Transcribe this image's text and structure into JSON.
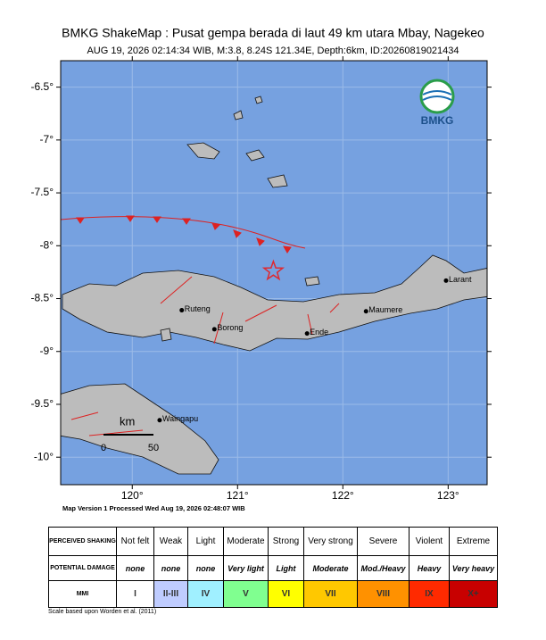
{
  "header": {
    "title": "BMKG ShakeMap : Pusat gempa berada di laut 49 km utara Mbay, Nagekeo",
    "subtitle": "AUG 19, 2026 02:14:34 WIB, M:3.8, 8.24S 121.34E, Depth:6km, ID:20260819021434"
  },
  "map": {
    "lonlim": [
      119.32,
      123.37
    ],
    "latlim": [
      -10.26,
      -6.25
    ],
    "lonticks": [
      {
        "value": 120,
        "label": "120°"
      },
      {
        "value": 121,
        "label": "121°"
      },
      {
        "value": 122,
        "label": "122°"
      },
      {
        "value": 123,
        "label": "123°"
      }
    ],
    "latticks": [
      {
        "value": -6.5,
        "label": "-6.5°"
      },
      {
        "value": -7,
        "label": "-7°"
      },
      {
        "value": -7.5,
        "label": "-7.5°"
      },
      {
        "value": -8,
        "label": "-8°"
      },
      {
        "value": -8.5,
        "label": "-8.5°"
      },
      {
        "value": -9,
        "label": "-9°"
      },
      {
        "value": -9.5,
        "label": "-9.5°"
      },
      {
        "value": -10,
        "label": "-10°"
      }
    ],
    "grid": true,
    "sea_color": "#76a1e0",
    "epicenter": {
      "lon": 121.34,
      "lat": -8.24,
      "color": "#e0282e"
    },
    "places": [
      {
        "name": "Ruteng",
        "lon": 120.47,
        "lat": -8.61
      },
      {
        "name": "Borong",
        "lon": 120.78,
        "lat": -8.79
      },
      {
        "name": "Ende",
        "lon": 121.66,
        "lat": -8.83
      },
      {
        "name": "Maumere",
        "lon": 122.22,
        "lat": -8.62
      },
      {
        "name": "Larant",
        "lon": 122.98,
        "lat": -8.33
      },
      {
        "name": "Waingapu",
        "lon": 120.26,
        "lat": -9.65
      }
    ],
    "scale_bar": {
      "unit": "km",
      "labels": [
        "0",
        "50"
      ]
    },
    "logo": "BMKG",
    "version_note": "Map Version 1 Processed Wed Aug 19, 2026 02:48:07 WIB"
  },
  "legend": {
    "row_labels": [
      "PERCEIVED SHAKING",
      "POTENTIAL DAMAGE",
      "MMI"
    ],
    "columns": [
      {
        "shaking": "Not felt",
        "damage": "none",
        "mmi": "I",
        "color": "#ffffff"
      },
      {
        "shaking": "Weak",
        "damage": "none",
        "mmi": "II-III",
        "color": "#bfccff"
      },
      {
        "shaking": "Light",
        "damage": "none",
        "mmi": "IV",
        "color": "#a0f0ff"
      },
      {
        "shaking": "Moderate",
        "damage": "Very light",
        "mmi": "V",
        "color": "#80ff90"
      },
      {
        "shaking": "Strong",
        "damage": "Light",
        "mmi": "VI",
        "color": "#ffff00"
      },
      {
        "shaking": "Very strong",
        "damage": "Moderate",
        "mmi": "VII",
        "color": "#ffc800"
      },
      {
        "shaking": "Severe",
        "damage": "Mod./Heavy",
        "mmi": "VIII",
        "color": "#ff9100"
      },
      {
        "shaking": "Violent",
        "damage": "Heavy",
        "mmi": "IX",
        "color": "#ff2a00"
      },
      {
        "shaking": "Extreme",
        "damage": "Very heavy",
        "mmi": "X+",
        "color": "#c80000"
      }
    ],
    "note": "Scale based upon Worden et al. (2011)"
  }
}
